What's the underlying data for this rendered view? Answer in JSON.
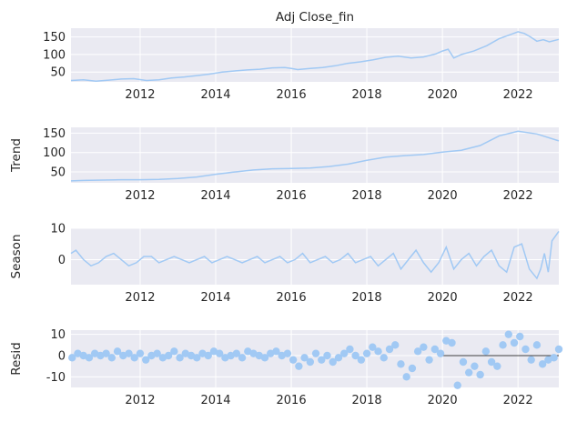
{
  "chart_data": {
    "type": "line",
    "title": "Adj Close_fin",
    "x_range": [
      2010.17,
      2023.08
    ],
    "x_ticks": [
      2012,
      2014,
      2016,
      2018,
      2020,
      2022
    ],
    "colors": {
      "series": "#a1c9f4",
      "background": "#eaeaf2",
      "zero_line": "#000000"
    },
    "grid": true,
    "panels": [
      {
        "id": "observed",
        "ylabel": "",
        "kind": "line",
        "ylim": [
          22,
          175
        ],
        "yticks": [
          50,
          100,
          150
        ],
        "x": [
          2010.17,
          2010.5,
          2010.83,
          2011.17,
          2011.5,
          2011.83,
          2012.17,
          2012.5,
          2012.83,
          2013.17,
          2013.5,
          2013.83,
          2014.17,
          2014.5,
          2014.83,
          2015.17,
          2015.5,
          2015.83,
          2016.0,
          2016.17,
          2016.5,
          2016.83,
          2017.17,
          2017.5,
          2017.83,
          2018.17,
          2018.5,
          2018.83,
          2019.17,
          2019.5,
          2019.83,
          2020.0,
          2020.15,
          2020.3,
          2020.5,
          2020.83,
          2021.17,
          2021.5,
          2021.83,
          2022.0,
          2022.17,
          2022.33,
          2022.5,
          2022.67,
          2022.83,
          2023.08
        ],
        "y": [
          26,
          28,
          24,
          27,
          30,
          31,
          26,
          28,
          33,
          36,
          40,
          44,
          50,
          53,
          56,
          58,
          62,
          63,
          60,
          57,
          60,
          63,
          68,
          75,
          79,
          85,
          92,
          95,
          90,
          93,
          102,
          110,
          115,
          90,
          100,
          110,
          125,
          145,
          158,
          165,
          160,
          150,
          138,
          142,
          136,
          143
        ]
      },
      {
        "id": "trend",
        "ylabel": "Trend",
        "kind": "line",
        "ylim": [
          22,
          165
        ],
        "yticks": [
          50,
          100,
          150
        ],
        "x": [
          2010.17,
          2010.5,
          2011.0,
          2011.5,
          2012.0,
          2012.5,
          2013.0,
          2013.5,
          2014.0,
          2014.5,
          2015.0,
          2015.5,
          2016.0,
          2016.5,
          2017.0,
          2017.5,
          2018.0,
          2018.5,
          2019.0,
          2019.5,
          2020.0,
          2020.5,
          2021.0,
          2021.5,
          2022.0,
          2022.5,
          2023.08
        ],
        "y": [
          27,
          28,
          29,
          30,
          30,
          31,
          33,
          37,
          44,
          50,
          55,
          58,
          59,
          60,
          64,
          70,
          80,
          88,
          92,
          95,
          101,
          106,
          118,
          143,
          155,
          148,
          130
        ]
      },
      {
        "id": "season",
        "ylabel": "Season",
        "kind": "line",
        "ylim": [
          -8,
          10
        ],
        "yticks": [
          0,
          10
        ],
        "x": [
          2010.17,
          2010.3,
          2010.5,
          2010.7,
          2010.9,
          2011.1,
          2011.3,
          2011.5,
          2011.7,
          2011.9,
          2012.1,
          2012.3,
          2012.5,
          2012.7,
          2012.9,
          2013.1,
          2013.3,
          2013.5,
          2013.7,
          2013.9,
          2014.1,
          2014.3,
          2014.5,
          2014.7,
          2014.9,
          2015.1,
          2015.3,
          2015.5,
          2015.7,
          2015.9,
          2016.1,
          2016.3,
          2016.5,
          2016.7,
          2016.9,
          2017.1,
          2017.3,
          2017.5,
          2017.7,
          2017.9,
          2018.1,
          2018.3,
          2018.5,
          2018.7,
          2018.9,
          2019.1,
          2019.3,
          2019.5,
          2019.7,
          2019.9,
          2020.1,
          2020.3,
          2020.5,
          2020.7,
          2020.9,
          2021.1,
          2021.3,
          2021.5,
          2021.7,
          2021.9,
          2022.1,
          2022.3,
          2022.5,
          2022.6,
          2022.7,
          2022.8,
          2022.9,
          2023.08
        ],
        "y": [
          2,
          3,
          0,
          -2,
          -1,
          1,
          2,
          0,
          -2,
          -1,
          1,
          1,
          -1,
          0,
          1,
          0,
          -1,
          0,
          1,
          -1,
          0,
          1,
          0,
          -1,
          0,
          1,
          -1,
          0,
          1,
          -1,
          0,
          2,
          -1,
          0,
          1,
          -1,
          0,
          2,
          -1,
          0,
          1,
          -2,
          0,
          2,
          -3,
          0,
          3,
          -1,
          -4,
          -1,
          4,
          -3,
          0,
          2,
          -2,
          1,
          3,
          -2,
          -4,
          4,
          5,
          -3,
          -6,
          -3,
          2,
          -4,
          6,
          9
        ]
      },
      {
        "id": "resid",
        "ylabel": "Resid",
        "kind": "scatter",
        "ylim": [
          -15,
          12
        ],
        "yticks": [
          -10,
          0,
          10
        ],
        "zero_line": true,
        "x": [
          2010.2,
          2010.35,
          2010.5,
          2010.65,
          2010.8,
          2010.95,
          2011.1,
          2011.25,
          2011.4,
          2011.55,
          2011.7,
          2011.85,
          2012.0,
          2012.15,
          2012.3,
          2012.45,
          2012.6,
          2012.75,
          2012.9,
          2013.05,
          2013.2,
          2013.35,
          2013.5,
          2013.65,
          2013.8,
          2013.95,
          2014.1,
          2014.25,
          2014.4,
          2014.55,
          2014.7,
          2014.85,
          2015.0,
          2015.15,
          2015.3,
          2015.45,
          2015.6,
          2015.75,
          2015.9,
          2016.05,
          2016.2,
          2016.35,
          2016.5,
          2016.65,
          2016.8,
          2016.95,
          2017.1,
          2017.25,
          2017.4,
          2017.55,
          2017.7,
          2017.85,
          2018.0,
          2018.15,
          2018.3,
          2018.45,
          2018.6,
          2018.75,
          2018.9,
          2019.05,
          2019.2,
          2019.35,
          2019.5,
          2019.65,
          2019.8,
          2019.95,
          2020.1,
          2020.25,
          2020.4,
          2020.55,
          2020.7,
          2020.85,
          2021.0,
          2021.15,
          2021.3,
          2021.45,
          2021.6,
          2021.75,
          2021.9,
          2022.05,
          2022.2,
          2022.35,
          2022.5,
          2022.65,
          2022.8,
          2022.95,
          2023.08
        ],
        "y": [
          -1,
          1,
          0,
          -1,
          1,
          0,
          1,
          -1,
          2,
          0,
          1,
          -1,
          1,
          -2,
          0,
          1,
          -1,
          0,
          2,
          -1,
          1,
          0,
          -1,
          1,
          0,
          2,
          1,
          -1,
          0,
          1,
          -1,
          2,
          1,
          0,
          -1,
          1,
          2,
          0,
          1,
          -2,
          -5,
          -1,
          -3,
          1,
          -2,
          0,
          -3,
          -1,
          1,
          3,
          0,
          -2,
          1,
          4,
          2,
          -1,
          3,
          5,
          -4,
          -10,
          -6,
          2,
          4,
          -2,
          3,
          1,
          7,
          6,
          -14,
          -3,
          -8,
          -5,
          -9,
          2,
          -3,
          -5,
          5,
          10,
          6,
          9,
          3,
          -2,
          5,
          -4,
          -2,
          -1,
          3
        ]
      }
    ]
  }
}
